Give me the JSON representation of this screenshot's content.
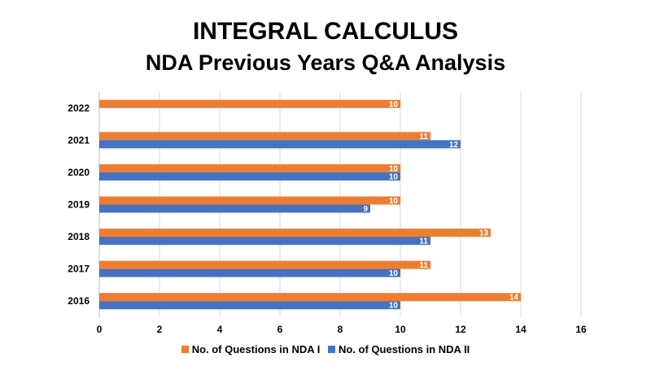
{
  "chart_data": {
    "type": "bar",
    "orientation": "horizontal",
    "title": "INTEGRAL CALCULUS",
    "subtitle": "NDA Previous Years Q&A Analysis",
    "categories": [
      "2016",
      "2017",
      "2018",
      "2019",
      "2020",
      "2021",
      "2022"
    ],
    "series": [
      {
        "name": "No. of Questions in NDA I",
        "color": "#ED7D31",
        "values": [
          14,
          11,
          13,
          10,
          10,
          11,
          10
        ]
      },
      {
        "name": "No. of Questions in NDA II",
        "color": "#4472C4",
        "values": [
          10,
          10,
          11,
          9,
          10,
          12,
          null
        ]
      }
    ],
    "xlim": [
      0,
      16
    ],
    "xticks": [
      "0",
      "2",
      "4",
      "6",
      "8",
      "10",
      "12",
      "14",
      "16"
    ],
    "grid": "vertical",
    "data_labels": true,
    "legend_position": "bottom"
  }
}
